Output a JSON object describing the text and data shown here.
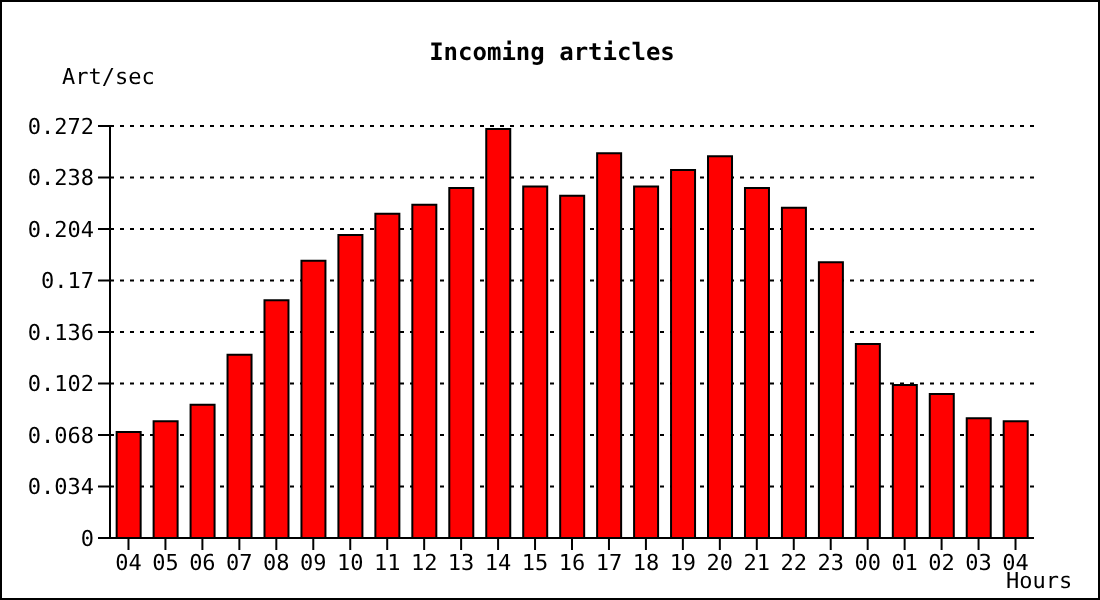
{
  "chart_data": {
    "type": "bar",
    "title": "Incoming articles",
    "ylabel": "Art/sec",
    "xlabel": "Hours",
    "categories": [
      "04",
      "05",
      "06",
      "07",
      "08",
      "09",
      "10",
      "11",
      "12",
      "13",
      "14",
      "15",
      "16",
      "17",
      "18",
      "19",
      "20",
      "21",
      "22",
      "23",
      "00",
      "01",
      "02",
      "03",
      "04"
    ],
    "values": [
      0.07,
      0.077,
      0.088,
      0.121,
      0.157,
      0.183,
      0.2,
      0.214,
      0.22,
      0.231,
      0.27,
      0.232,
      0.226,
      0.254,
      0.232,
      0.243,
      0.252,
      0.231,
      0.218,
      0.182,
      0.128,
      0.101,
      0.095,
      0.079,
      0.077
    ],
    "color": "#ff0000",
    "ylim": [
      0,
      0.272
    ],
    "yticks": [
      0,
      0.034,
      0.068,
      0.102,
      0.136,
      0.17,
      0.204,
      0.238,
      0.272
    ],
    "grid": "y"
  }
}
